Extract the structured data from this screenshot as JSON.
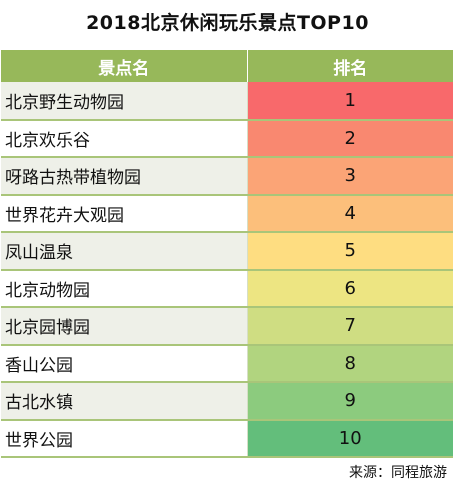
{
  "title": "2018北京休闲玩乐景点TOP10",
  "table": {
    "headers": {
      "name": "景点名",
      "rank": "排名"
    },
    "rows": [
      {
        "name": "北京野生动物园",
        "rank": "1",
        "color": "#f8696b"
      },
      {
        "name": "北京欢乐谷",
        "rank": "2",
        "color": "#f98870"
      },
      {
        "name": "呀路古热带植物园",
        "rank": "3",
        "color": "#fba476"
      },
      {
        "name": "世界花卉大观园",
        "rank": "4",
        "color": "#fcbf7b"
      },
      {
        "name": "凤山温泉",
        "rank": "5",
        "color": "#fedd81"
      },
      {
        "name": "北京动物园",
        "rank": "6",
        "color": "#ede582"
      },
      {
        "name": "北京园博园",
        "rank": "7",
        "color": "#cfdd82"
      },
      {
        "name": "香山公园",
        "rank": "8",
        "color": "#b1d47f"
      },
      {
        "name": "古北水镇",
        "rank": "9",
        "color": "#8ccb7e"
      },
      {
        "name": "世界公园",
        "rank": "10",
        "color": "#63be7b"
      }
    ]
  },
  "source": "来源：同程旅游"
}
